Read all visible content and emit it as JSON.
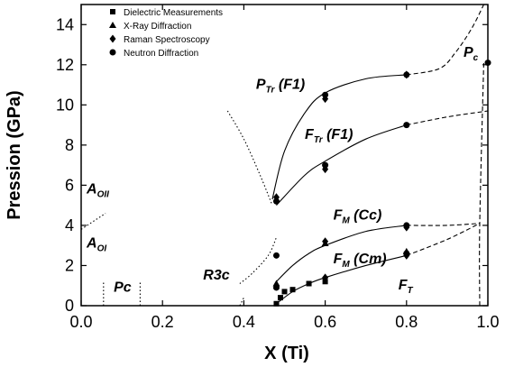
{
  "chart_data": {
    "type": "scatter",
    "xlabel": "X  (Ti)",
    "ylabel": "Pression (GPa)",
    "xlim": [
      0.0,
      1.0
    ],
    "ylim": [
      0,
      15
    ],
    "x_ticks": [
      "0.0",
      "0.2",
      "0.4",
      "0.6",
      "0.8",
      "1.0"
    ],
    "x_tick_values": [
      0.0,
      0.2,
      0.4,
      0.6,
      0.8,
      1.0
    ],
    "y_ticks": [
      "0",
      "2",
      "4",
      "6",
      "8",
      "10",
      "12",
      "14"
    ],
    "y_tick_values": [
      0,
      2,
      4,
      6,
      8,
      10,
      12,
      14
    ],
    "legend_position": "top-left",
    "series": [
      {
        "name": "Dielectric Measurements",
        "marker": "square",
        "points": [
          [
            0.48,
            0.1
          ],
          [
            0.49,
            0.4
          ],
          [
            0.5,
            0.7
          ],
          [
            0.52,
            0.8
          ],
          [
            0.56,
            1.1
          ],
          [
            0.6,
            1.2
          ]
        ]
      },
      {
        "name": "X-Ray Diffraction",
        "marker": "triangle",
        "points": [
          [
            0.48,
            1.1
          ],
          [
            0.6,
            3.1
          ],
          [
            0.8,
            2.7
          ]
        ]
      },
      {
        "name": "Raman Spectroscopy",
        "marker": "diamond",
        "points": [
          [
            0.48,
            5.4
          ],
          [
            0.6,
            10.3
          ],
          [
            0.6,
            6.8
          ],
          [
            0.6,
            3.2
          ],
          [
            0.6,
            1.4
          ],
          [
            0.8,
            11.5
          ],
          [
            0.8,
            3.9
          ],
          [
            0.8,
            2.5
          ]
        ]
      },
      {
        "name": "Neutron Diffraction",
        "marker": "circle",
        "points": [
          [
            0.48,
            5.2
          ],
          [
            0.48,
            2.5
          ],
          [
            0.48,
            0.9
          ],
          [
            0.6,
            10.5
          ],
          [
            0.6,
            7.0
          ],
          [
            0.8,
            11.5
          ],
          [
            0.8,
            9.0
          ],
          [
            0.8,
            4.0
          ],
          [
            0.8,
            2.6
          ],
          [
            1.0,
            12.1
          ]
        ]
      }
    ],
    "curves": [
      {
        "style": "solid",
        "points": [
          [
            0.47,
            5.3
          ],
          [
            0.5,
            7.7
          ],
          [
            0.55,
            9.6
          ],
          [
            0.6,
            10.6
          ],
          [
            0.7,
            11.3
          ],
          [
            0.8,
            11.5
          ]
        ]
      },
      {
        "style": "dashed",
        "points": [
          [
            0.8,
            11.5
          ],
          [
            0.88,
            11.8
          ],
          [
            0.92,
            12.6
          ],
          [
            0.96,
            13.8
          ],
          [
            0.99,
            15.0
          ]
        ]
      },
      {
        "style": "solid",
        "points": [
          [
            0.48,
            5.0
          ],
          [
            0.55,
            6.5
          ],
          [
            0.6,
            7.2
          ],
          [
            0.7,
            8.3
          ],
          [
            0.8,
            9.0
          ]
        ]
      },
      {
        "style": "dashed",
        "points": [
          [
            0.8,
            9.0
          ],
          [
            0.9,
            9.4
          ],
          [
            1.0,
            9.7
          ]
        ]
      },
      {
        "style": "solid",
        "points": [
          [
            0.48,
            1.2
          ],
          [
            0.52,
            2.0
          ],
          [
            0.56,
            2.6
          ],
          [
            0.6,
            3.0
          ],
          [
            0.7,
            3.7
          ],
          [
            0.8,
            4.0
          ]
        ]
      },
      {
        "style": "dashed",
        "points": [
          [
            0.8,
            4.0
          ],
          [
            0.9,
            4.0
          ],
          [
            0.98,
            4.1
          ]
        ]
      },
      {
        "style": "solid",
        "points": [
          [
            0.48,
            0.1
          ],
          [
            0.52,
            0.7
          ],
          [
            0.56,
            1.1
          ],
          [
            0.6,
            1.4
          ],
          [
            0.7,
            2.0
          ],
          [
            0.8,
            2.5
          ]
        ]
      },
      {
        "style": "dashed",
        "points": [
          [
            0.8,
            2.5
          ],
          [
            0.9,
            3.3
          ],
          [
            0.98,
            4.1
          ]
        ]
      },
      {
        "style": "dashed",
        "points": [
          [
            0.98,
            0
          ],
          [
            0.98,
            4.1
          ],
          [
            0.99,
            12.2
          ]
        ]
      },
      {
        "style": "dotted",
        "points": [
          [
            0.36,
            9.7
          ],
          [
            0.4,
            8.3
          ],
          [
            0.44,
            6.5
          ],
          [
            0.47,
            5.0
          ]
        ]
      },
      {
        "style": "dotted",
        "points": [
          [
            0.39,
            1.1
          ],
          [
            0.42,
            1.6
          ],
          [
            0.46,
            2.5
          ],
          [
            0.48,
            3.4
          ]
        ]
      },
      {
        "style": "dotted",
        "points": [
          [
            0.0,
            3.8
          ],
          [
            0.06,
            4.6
          ]
        ]
      },
      {
        "style": "dotted",
        "points": [
          [
            0.055,
            0
          ],
          [
            0.055,
            1.2
          ]
        ]
      },
      {
        "style": "dotted",
        "points": [
          [
            0.145,
            0
          ],
          [
            0.145,
            1.2
          ]
        ]
      },
      {
        "style": "dotted",
        "points": [
          [
            0.39,
            0
          ],
          [
            0.4,
            0.4
          ]
        ]
      }
    ],
    "region_labels": [
      {
        "text": "P",
        "sub": "Tr",
        "suffix": " (F1)",
        "x": 0.43,
        "y": 10.8
      },
      {
        "text": "F",
        "sub": "Tr",
        "suffix": " (F1)",
        "x": 0.55,
        "y": 8.3
      },
      {
        "text": "F",
        "sub": "M",
        "suffix": " (Cc)",
        "x": 0.62,
        "y": 4.3
      },
      {
        "text": "F",
        "sub": "M",
        "suffix": " (Cm)",
        "x": 0.62,
        "y": 2.1
      },
      {
        "text": "F",
        "sub": "T",
        "suffix": "",
        "x": 0.78,
        "y": 0.8
      },
      {
        "text": "P",
        "sub": "c",
        "suffix": "",
        "x": 0.94,
        "y": 12.4
      },
      {
        "text": "A",
        "sub": "OII",
        "suffix": "",
        "x": 0.0,
        "y": 5.6
      },
      {
        "text": "A",
        "sub": "OI",
        "suffix": "",
        "x": 0.0,
        "y": 2.9
      },
      {
        "text": "Pc",
        "sub": "",
        "suffix": "",
        "x": 0.08,
        "y": 0.7
      },
      {
        "text": "R3c",
        "sub": "",
        "suffix": "",
        "x": 0.3,
        "y": 1.3
      }
    ],
    "colors": {
      "ink": "#000000",
      "background": "#ffffff"
    }
  }
}
